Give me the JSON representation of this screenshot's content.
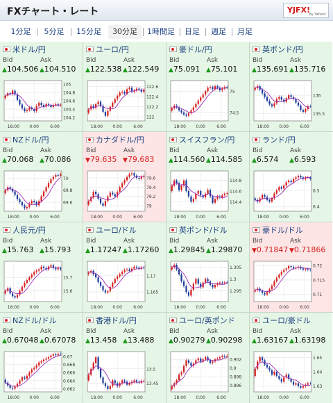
{
  "header": {
    "title": "FXチャート・レート",
    "logo": "YJFX!",
    "logo_sub": "by Yahoo!"
  },
  "tabs": [
    {
      "label": "1分足",
      "active": false
    },
    {
      "label": "5分足",
      "active": false
    },
    {
      "label": "15分足",
      "active": false
    },
    {
      "label": "30分足",
      "active": true
    },
    {
      "label": "1時間足",
      "active": false
    },
    {
      "label": "日足",
      "active": false
    },
    {
      "label": "週足",
      "active": false
    },
    {
      "label": "月足",
      "active": false
    }
  ],
  "labels": {
    "bid": "Bid",
    "ask": "Ask"
  },
  "colors": {
    "up": "#1a9a1a",
    "down": "#d62020",
    "up_bg": "#e6f6e6",
    "down_bg": "#fde5e5",
    "ma": "#9b2fb5"
  },
  "chart_data": [
    {
      "type": "candlestick",
      "pair": "米ドル/円",
      "bid": "104.506",
      "ask": "104.510",
      "trend": "up",
      "xticks": [
        "18:00",
        "0:00",
        "6:00"
      ],
      "yticks": [
        "105",
        "104.8",
        "104.6",
        "104.4",
        "104.2"
      ],
      "ylim": [
        104.12,
        105.08
      ],
      "closes": [
        104.72,
        104.78,
        104.76,
        104.84,
        104.75,
        104.62,
        104.51,
        104.42,
        104.35,
        104.38,
        104.44,
        104.4,
        104.35,
        104.48,
        104.55,
        104.5,
        104.46,
        104.52,
        104.49,
        104.45,
        104.5,
        104.52,
        104.49,
        104.51
      ]
    },
    {
      "type": "candlestick",
      "pair": "ユーロ/円",
      "bid": "122.538",
      "ask": "122.549",
      "trend": "up",
      "xticks": [
        "18:00",
        "0:00",
        "6:00"
      ],
      "yticks": [
        "122.6",
        "122.4",
        "122.2",
        "122"
      ],
      "ylim": [
        121.92,
        122.72
      ],
      "closes": [
        122.15,
        122.22,
        122.18,
        122.25,
        122.3,
        122.22,
        122.1,
        122.02,
        122.12,
        122.2,
        122.28,
        122.35,
        122.42,
        122.48,
        122.5,
        122.46,
        122.55,
        122.58,
        122.5,
        122.52,
        122.56,
        122.54,
        122.5,
        122.54
      ]
    },
    {
      "type": "candlestick",
      "pair": "豪ドル/円",
      "bid": "75.091",
      "ask": "75.101",
      "trend": "up",
      "xticks": [
        "18:00",
        "0:00",
        "6:00"
      ],
      "yticks": [
        "75",
        "74.5"
      ],
      "ylim": [
        74.3,
        75.25
      ],
      "closes": [
        74.6,
        74.66,
        74.62,
        74.55,
        74.5,
        74.45,
        74.42,
        74.48,
        74.55,
        74.62,
        74.7,
        74.78,
        74.85,
        74.92,
        75.0,
        75.08,
        75.1,
        75.05,
        75.12,
        75.08,
        75.02,
        75.06,
        75.1,
        75.09
      ]
    },
    {
      "type": "candlestick",
      "pair": "英ポンド/円",
      "bid": "135.691",
      "ask": "135.716",
      "trend": "up",
      "xticks": [
        "18:00",
        "0:00",
        "6:00"
      ],
      "yticks": [
        "136",
        "135.5"
      ],
      "ylim": [
        135.3,
        136.4
      ],
      "closes": [
        136.2,
        136.25,
        136.15,
        136.05,
        135.95,
        135.85,
        135.75,
        135.7,
        135.78,
        135.9,
        135.95,
        135.88,
        135.82,
        135.92,
        136.0,
        135.95,
        135.9,
        135.8,
        135.72,
        135.6,
        135.55,
        135.62,
        135.7,
        135.69
      ]
    },
    {
      "type": "candlestick",
      "pair": "NZドル/円",
      "bid": "70.068",
      "ask": "70.086",
      "trend": "up",
      "xticks": [
        "18:00",
        "0:00",
        "6:00"
      ],
      "yticks": [
        "70",
        "69.8",
        "69.6"
      ],
      "ylim": [
        69.45,
        70.12
      ],
      "closes": [
        69.8,
        69.85,
        69.82,
        69.78,
        69.72,
        69.65,
        69.6,
        69.55,
        69.5,
        69.52,
        69.58,
        69.62,
        69.6,
        69.55,
        69.62,
        69.7,
        69.78,
        69.85,
        69.92,
        69.98,
        70.02,
        70.05,
        70.04,
        70.07
      ]
    },
    {
      "type": "candlestick",
      "pair": "カナダドル/円",
      "bid": "79.635",
      "ask": "79.683",
      "trend": "down",
      "xticks": [
        "18:00",
        "0:00",
        "6:00"
      ],
      "yticks": [
        "79.6",
        "79.4",
        "79.2",
        "79"
      ],
      "ylim": [
        78.88,
        79.75
      ],
      "closes": [
        79.1,
        79.18,
        79.3,
        79.25,
        79.15,
        79.05,
        79.0,
        79.1,
        79.2,
        79.28,
        79.25,
        79.2,
        79.3,
        79.4,
        79.48,
        79.55,
        79.62,
        79.68,
        79.7,
        79.65,
        79.6,
        79.58,
        79.62,
        79.64
      ]
    },
    {
      "type": "candlestick",
      "pair": "スイスフラン/円",
      "bid": "114.560",
      "ask": "114.585",
      "trend": "up",
      "xticks": [
        "18:00",
        "0:00",
        "6:00"
      ],
      "yticks": [
        "114.8",
        "114.6",
        "114.4"
      ],
      "ylim": [
        114.22,
        114.98
      ],
      "closes": [
        114.7,
        114.8,
        114.75,
        114.62,
        114.7,
        114.8,
        114.6,
        114.5,
        114.4,
        114.45,
        114.55,
        114.6,
        114.52,
        114.48,
        114.55,
        114.62,
        114.5,
        114.38,
        114.45,
        114.5,
        114.48,
        114.52,
        114.55,
        114.56
      ]
    },
    {
      "type": "candlestick",
      "pair": "ランド/円",
      "bid": "6.574",
      "ask": "6.593",
      "trend": "up",
      "xticks": [
        "18:00",
        "0:00",
        "6:00"
      ],
      "yticks": [
        "6.5",
        "6.4"
      ],
      "ylim": [
        6.37,
        6.62
      ],
      "closes": [
        6.44,
        6.43,
        6.45,
        6.47,
        6.46,
        6.44,
        6.43,
        6.45,
        6.48,
        6.5,
        6.52,
        6.51,
        6.53,
        6.55,
        6.56,
        6.55,
        6.57,
        6.58,
        6.59,
        6.58,
        6.57,
        6.58,
        6.58,
        6.57
      ]
    },
    {
      "type": "candlestick",
      "pair": "人民元/円",
      "bid": "15.763",
      "ask": "15.793",
      "trend": "up",
      "xticks": [
        "18:00",
        "0:00",
        "6:00"
      ],
      "yticks": [
        "15.7",
        "15.6"
      ],
      "ylim": [
        15.52,
        15.82
      ],
      "closes": [
        15.6,
        15.62,
        15.58,
        15.56,
        15.55,
        15.57,
        15.6,
        15.63,
        15.66,
        15.68,
        15.7,
        15.72,
        15.74,
        15.75,
        15.76,
        15.78,
        15.77,
        15.76,
        15.78,
        15.79,
        15.77,
        15.76,
        15.77,
        15.76
      ]
    },
    {
      "type": "candlestick",
      "pair": "ユーロ/ドル",
      "bid": "1.17247",
      "ask": "1.17260",
      "trend": "up",
      "xticks": [
        "18:00",
        "0:00",
        "6:00"
      ],
      "yticks": [
        "1.17",
        "1.165"
      ],
      "ylim": [
        1.162,
        1.1745
      ],
      "closes": [
        1.171,
        1.1715,
        1.1705,
        1.1695,
        1.168,
        1.1668,
        1.1655,
        1.1648,
        1.1652,
        1.1665,
        1.1678,
        1.169,
        1.1698,
        1.1705,
        1.1712,
        1.1718,
        1.172,
        1.1715,
        1.1722,
        1.1728,
        1.1725,
        1.1722,
        1.1726,
        1.1725
      ]
    },
    {
      "type": "candlestick",
      "pair": "英ポンド/ドル",
      "bid": "1.29845",
      "ask": "1.29870",
      "trend": "up",
      "xticks": [
        "18:00",
        "0:00",
        "6:00"
      ],
      "yticks": [
        "1.305",
        "1.3",
        "1.295"
      ],
      "ylim": [
        1.2905,
        1.3075
      ],
      "closes": [
        1.305,
        1.306,
        1.304,
        1.302,
        1.299,
        1.297,
        1.2945,
        1.293,
        1.2955,
        1.298,
        1.3,
        1.298,
        1.2965,
        1.2985,
        1.3,
        1.299,
        1.2975,
        1.2965,
        1.2975,
        1.298,
        1.2985,
        1.2982,
        1.2986,
        1.2985
      ]
    },
    {
      "type": "candlestick",
      "pair": "豪ドル/ドル",
      "bid": "0.71847",
      "ask": "0.71866",
      "trend": "down",
      "xticks": [
        "18:00",
        "0:00",
        "6:00"
      ],
      "yticks": [
        "0.72",
        "0.715",
        "0.71"
      ],
      "ylim": [
        0.7075,
        0.7215
      ],
      "closes": [
        0.7115,
        0.712,
        0.7112,
        0.7105,
        0.71,
        0.7108,
        0.7118,
        0.713,
        0.7145,
        0.7158,
        0.7168,
        0.7178,
        0.7185,
        0.719,
        0.7198,
        0.7195,
        0.719,
        0.7192,
        0.7196,
        0.719,
        0.7186,
        0.7188,
        0.7186,
        0.7185
      ]
    },
    {
      "type": "candlestick",
      "pair": "NZドル/ドル",
      "bid": "0.67048",
      "ask": "0.67078",
      "trend": "up",
      "xticks": [
        "18:00",
        "0:00",
        "6:00"
      ],
      "yticks": [
        "0.67",
        "0.668",
        "0.666",
        "0.664",
        "0.662"
      ],
      "ylim": [
        0.6612,
        0.6712
      ],
      "closes": [
        0.6635,
        0.6628,
        0.6622,
        0.662,
        0.6625,
        0.6632,
        0.664,
        0.6648,
        0.6645,
        0.6652,
        0.666,
        0.6668,
        0.6672,
        0.6678,
        0.6685,
        0.6688,
        0.6692,
        0.6695,
        0.6698,
        0.6702,
        0.6705,
        0.6703,
        0.6706,
        0.6705
      ]
    },
    {
      "type": "candlestick",
      "pair": "香港ドル/円",
      "bid": "13.458",
      "ask": "13.488",
      "trend": "up",
      "xticks": [
        "18:00",
        "0:00",
        "6:00"
      ],
      "yticks": [
        "13.5",
        "13.45"
      ],
      "ylim": [
        13.42,
        13.56
      ],
      "closes": [
        13.48,
        13.5,
        13.52,
        13.54,
        13.5,
        13.47,
        13.45,
        13.44,
        13.43,
        13.44,
        13.46,
        13.45,
        13.44,
        13.45,
        13.46,
        13.455,
        13.445,
        13.45,
        13.455,
        13.46,
        13.455,
        13.452,
        13.458,
        13.458
      ]
    },
    {
      "type": "candlestick",
      "pair": "ユーロ/英ポンド",
      "bid": "0.90279",
      "ask": "0.90298",
      "trend": "up",
      "xticks": [
        "18:00",
        "0:00",
        "6:00"
      ],
      "yticks": [
        "0.902",
        "0.9",
        "0.898",
        "0.896"
      ],
      "ylim": [
        0.8945,
        0.9038
      ],
      "closes": [
        0.8958,
        0.8965,
        0.8972,
        0.8985,
        0.899,
        0.9005,
        0.9018,
        0.9012,
        0.9005,
        0.901,
        0.9018,
        0.9022,
        0.9015,
        0.902,
        0.9025,
        0.9018,
        0.9012,
        0.9015,
        0.902,
        0.9022,
        0.9025,
        0.9028,
        0.9026,
        0.9028
      ]
    },
    {
      "type": "candlestick",
      "pair": "ユーロ/豪ドル",
      "bid": "1.63167",
      "ask": "1.63198",
      "trend": "up",
      "xticks": [
        "18:00",
        "0:00",
        "6:00"
      ],
      "yticks": [
        "1.65",
        "1.64",
        "1.63"
      ],
      "ylim": [
        1.626,
        1.654
      ],
      "closes": [
        1.642,
        1.647,
        1.65,
        1.648,
        1.645,
        1.643,
        1.641,
        1.638,
        1.64,
        1.637,
        1.635,
        1.633,
        1.636,
        1.638,
        1.635,
        1.633,
        1.631,
        1.632,
        1.63,
        1.629,
        1.63,
        1.631,
        1.632,
        1.6317
      ]
    }
  ]
}
